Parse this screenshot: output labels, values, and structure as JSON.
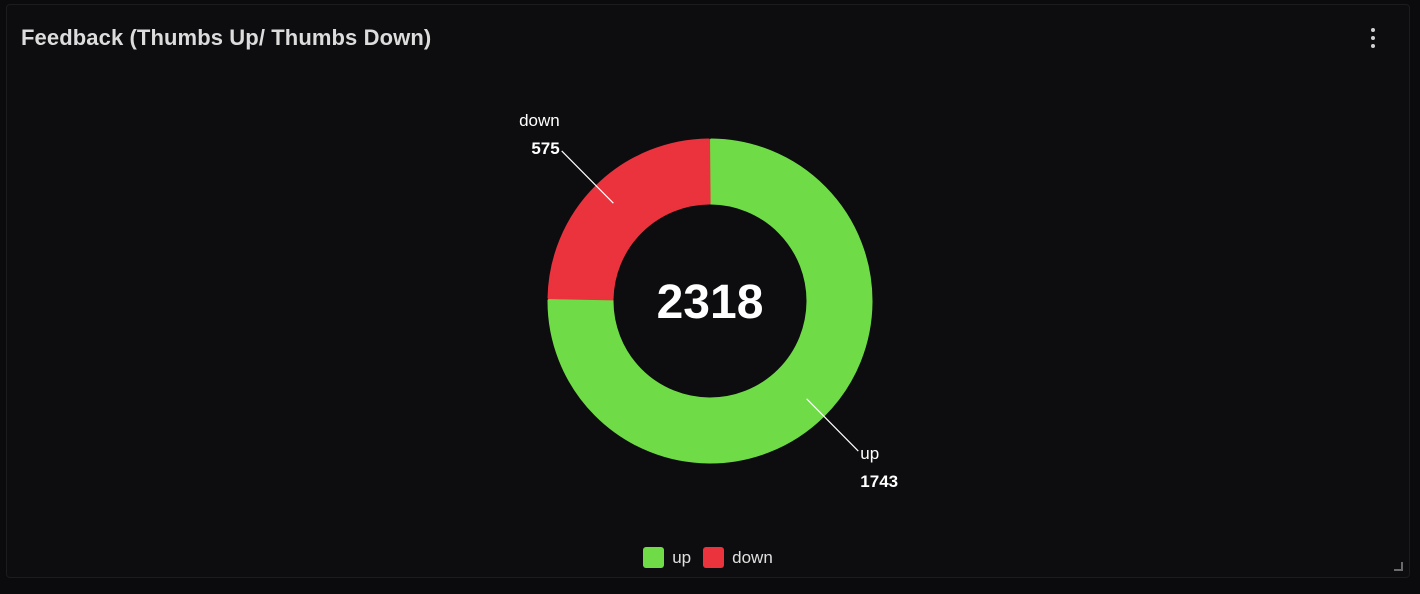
{
  "panel": {
    "title": "Feedback (Thumbs Up/ Thumbs Down)",
    "menu_icon": "more-vertical-icon",
    "resize_icon": "resize-corner-icon"
  },
  "chart_data": {
    "type": "pie",
    "title": "",
    "total_label": "2318",
    "series": [
      {
        "name": "up",
        "value": 1743,
        "color": "#6fdc47"
      },
      {
        "name": "down",
        "value": 575,
        "color": "#ea333d"
      }
    ],
    "legend_position": "bottom-center"
  },
  "legend": {
    "items": [
      {
        "label": "up",
        "color": "#6fdc47"
      },
      {
        "label": "down",
        "color": "#ea333d"
      }
    ]
  }
}
